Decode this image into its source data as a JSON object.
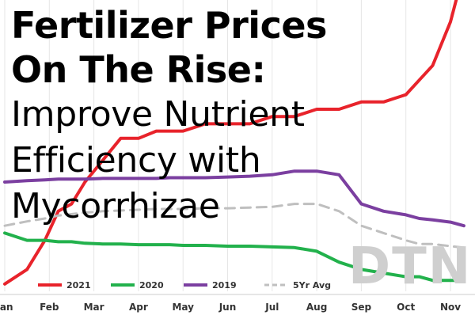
{
  "title": {
    "line1": "Fertilizer Prices",
    "line2": "On The Rise:",
    "line3": "Improve Nutrient",
    "line4": "Efficiency with",
    "line5": "Mycorrhizae"
  },
  "watermark": "DTN",
  "chart_data": {
    "type": "line",
    "categories": [
      "Jan",
      "Feb",
      "Mar",
      "Apr",
      "May",
      "Jun",
      "Jul",
      "Aug",
      "Sep",
      "Oct",
      "Nov"
    ],
    "x": [
      0,
      0.5,
      0.9,
      1.2,
      1.5,
      1.8,
      2.2,
      2.6,
      3.0,
      3.4,
      3.7,
      4.0,
      4.5,
      5.0,
      5.5,
      6.0,
      6.5,
      7.0,
      7.5,
      8.0,
      8.5,
      9.0,
      9.3,
      9.6,
      10.0,
      10.3
    ],
    "ylim": [
      0,
      100
    ],
    "grid": true,
    "legend": "bottom",
    "series": [
      {
        "name": "2021",
        "color": "#e8232b",
        "values": [
          1,
          3,
          7,
          11,
          12,
          15,
          18,
          21,
          21,
          22,
          22,
          22,
          23,
          23,
          23,
          24,
          24,
          25,
          25,
          26,
          26,
          27,
          29,
          31,
          37,
          44
        ]
      },
      {
        "name": "2020",
        "color": "#22b14c",
        "values": [
          8,
          7,
          7,
          6.8,
          6.8,
          6.6,
          6.5,
          6.5,
          6.4,
          6.4,
          6.4,
          6.3,
          6.3,
          6.2,
          6.2,
          6.1,
          6,
          5.5,
          4,
          3,
          2.5,
          2,
          2,
          1.5,
          1.5,
          1.5
        ]
      },
      {
        "name": "2019",
        "color": "#7b3fa0",
        "values": [
          15,
          15.2,
          15.3,
          15.4,
          15.4,
          15.4,
          15.5,
          15.5,
          15.5,
          15.5,
          15.6,
          15.6,
          15.6,
          15.7,
          15.8,
          16,
          16.5,
          16.5,
          16,
          12,
          11,
          10.5,
          10,
          9.8,
          9.5,
          9
        ]
      },
      {
        "name": "5Yr Avg",
        "color": "#bfbfbf",
        "dashed": true,
        "values": [
          9,
          9.6,
          10,
          10.4,
          10.6,
          10.8,
          11,
          11.1,
          11.2,
          11.3,
          11.3,
          11.3,
          11.4,
          11.4,
          11.5,
          11.6,
          12,
          12,
          11,
          9,
          8,
          7,
          6.5,
          6.5,
          6.2,
          6
        ]
      }
    ]
  }
}
